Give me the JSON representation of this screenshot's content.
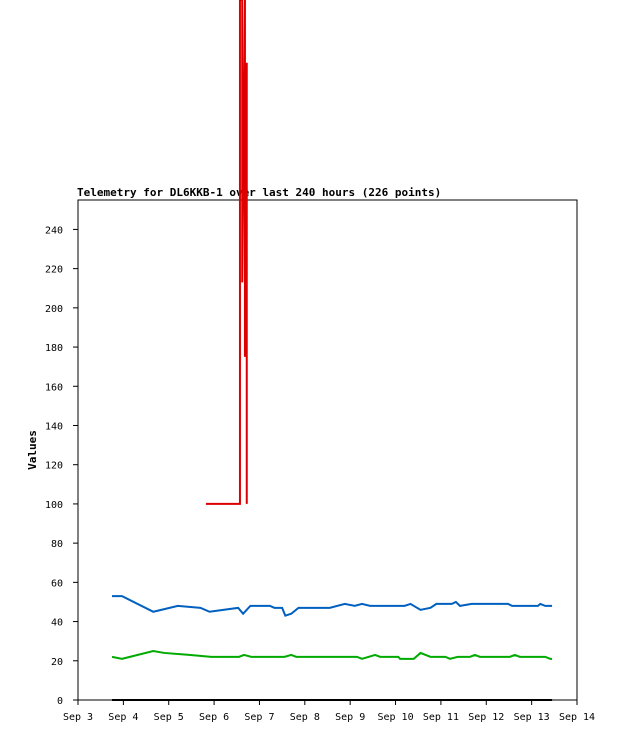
{
  "chart_data": {
    "type": "line",
    "title": "Telemetry for DL6KKB-1 over last 240 hours (226 points)",
    "y_label": "Values",
    "xlim": [
      3,
      14
    ],
    "xticks": [
      {
        "value": 3,
        "label": "Sep 3"
      },
      {
        "value": 4,
        "label": "Sep 4"
      },
      {
        "value": 5,
        "label": "Sep 5"
      },
      {
        "value": 6,
        "label": "Sep 6"
      },
      {
        "value": 7,
        "label": "Sep 7"
      },
      {
        "value": 8,
        "label": "Sep 8"
      },
      {
        "value": 9,
        "label": "Sep 9"
      },
      {
        "value": 10,
        "label": "Sep 10"
      },
      {
        "value": 11,
        "label": "Sep 11"
      },
      {
        "value": 12,
        "label": "Sep 12"
      },
      {
        "value": 13,
        "label": "Sep 13"
      },
      {
        "value": 14,
        "label": "Sep 14"
      }
    ],
    "ylim": [
      0,
      255
    ],
    "yticks": [
      0,
      20,
      40,
      60,
      80,
      100,
      120,
      140,
      160,
      180,
      200,
      220,
      240
    ],
    "series": [
      {
        "color": "#dd0000",
        "x": [
          5.82,
          6.57,
          6.57,
          6.62,
          6.62,
          6.68,
          6.68,
          6.72,
          6.72
        ],
        "values": [
          100,
          100,
          357,
          357,
          213,
          357,
          175,
          325,
          100
        ]
      },
      {
        "color": "#0060c0",
        "x": [
          3.75,
          3.97,
          4.66,
          5.2,
          5.7,
          5.9,
          6.53,
          6.64,
          6.8,
          7.23,
          7.33,
          7.5,
          7.57,
          7.7,
          7.86,
          8.55,
          8.88,
          9.1,
          9.26,
          9.44,
          10.2,
          10.33,
          10.55,
          10.77,
          10.9,
          11.24,
          11.33,
          11.42,
          11.68,
          12.48,
          12.57,
          13.14,
          13.19,
          13.3,
          13.45
        ],
        "values": [
          53,
          53,
          45,
          48,
          47,
          45,
          47,
          44,
          48,
          48,
          47,
          47,
          43,
          44,
          47,
          47,
          49,
          48,
          49,
          48,
          48,
          49,
          46,
          47,
          49,
          49,
          50,
          48,
          49,
          49,
          48,
          48,
          49,
          48,
          48
        ]
      },
      {
        "color": "#00aa00",
        "x": [
          3.75,
          3.97,
          4.66,
          4.9,
          5.45,
          5.94,
          6.55,
          6.66,
          6.82,
          7.55,
          7.7,
          7.81,
          9.15,
          9.26,
          9.55,
          9.66,
          10.06,
          10.1,
          10.4,
          10.55,
          10.77,
          11.1,
          11.2,
          11.37,
          11.64,
          11.75,
          11.86,
          12.52,
          12.63,
          12.74,
          13.3,
          13.41,
          13.45
        ],
        "values": [
          22,
          21,
          25,
          24,
          23,
          22,
          22,
          23,
          22,
          22,
          23,
          22,
          22,
          21,
          23,
          22,
          22,
          21,
          21,
          24,
          22,
          22,
          21,
          22,
          22,
          23,
          22,
          22,
          23,
          22,
          22,
          21,
          21
        ]
      },
      {
        "color": "#000000",
        "x": [
          3.75,
          13.45
        ],
        "values": [
          0,
          0
        ]
      }
    ]
  }
}
